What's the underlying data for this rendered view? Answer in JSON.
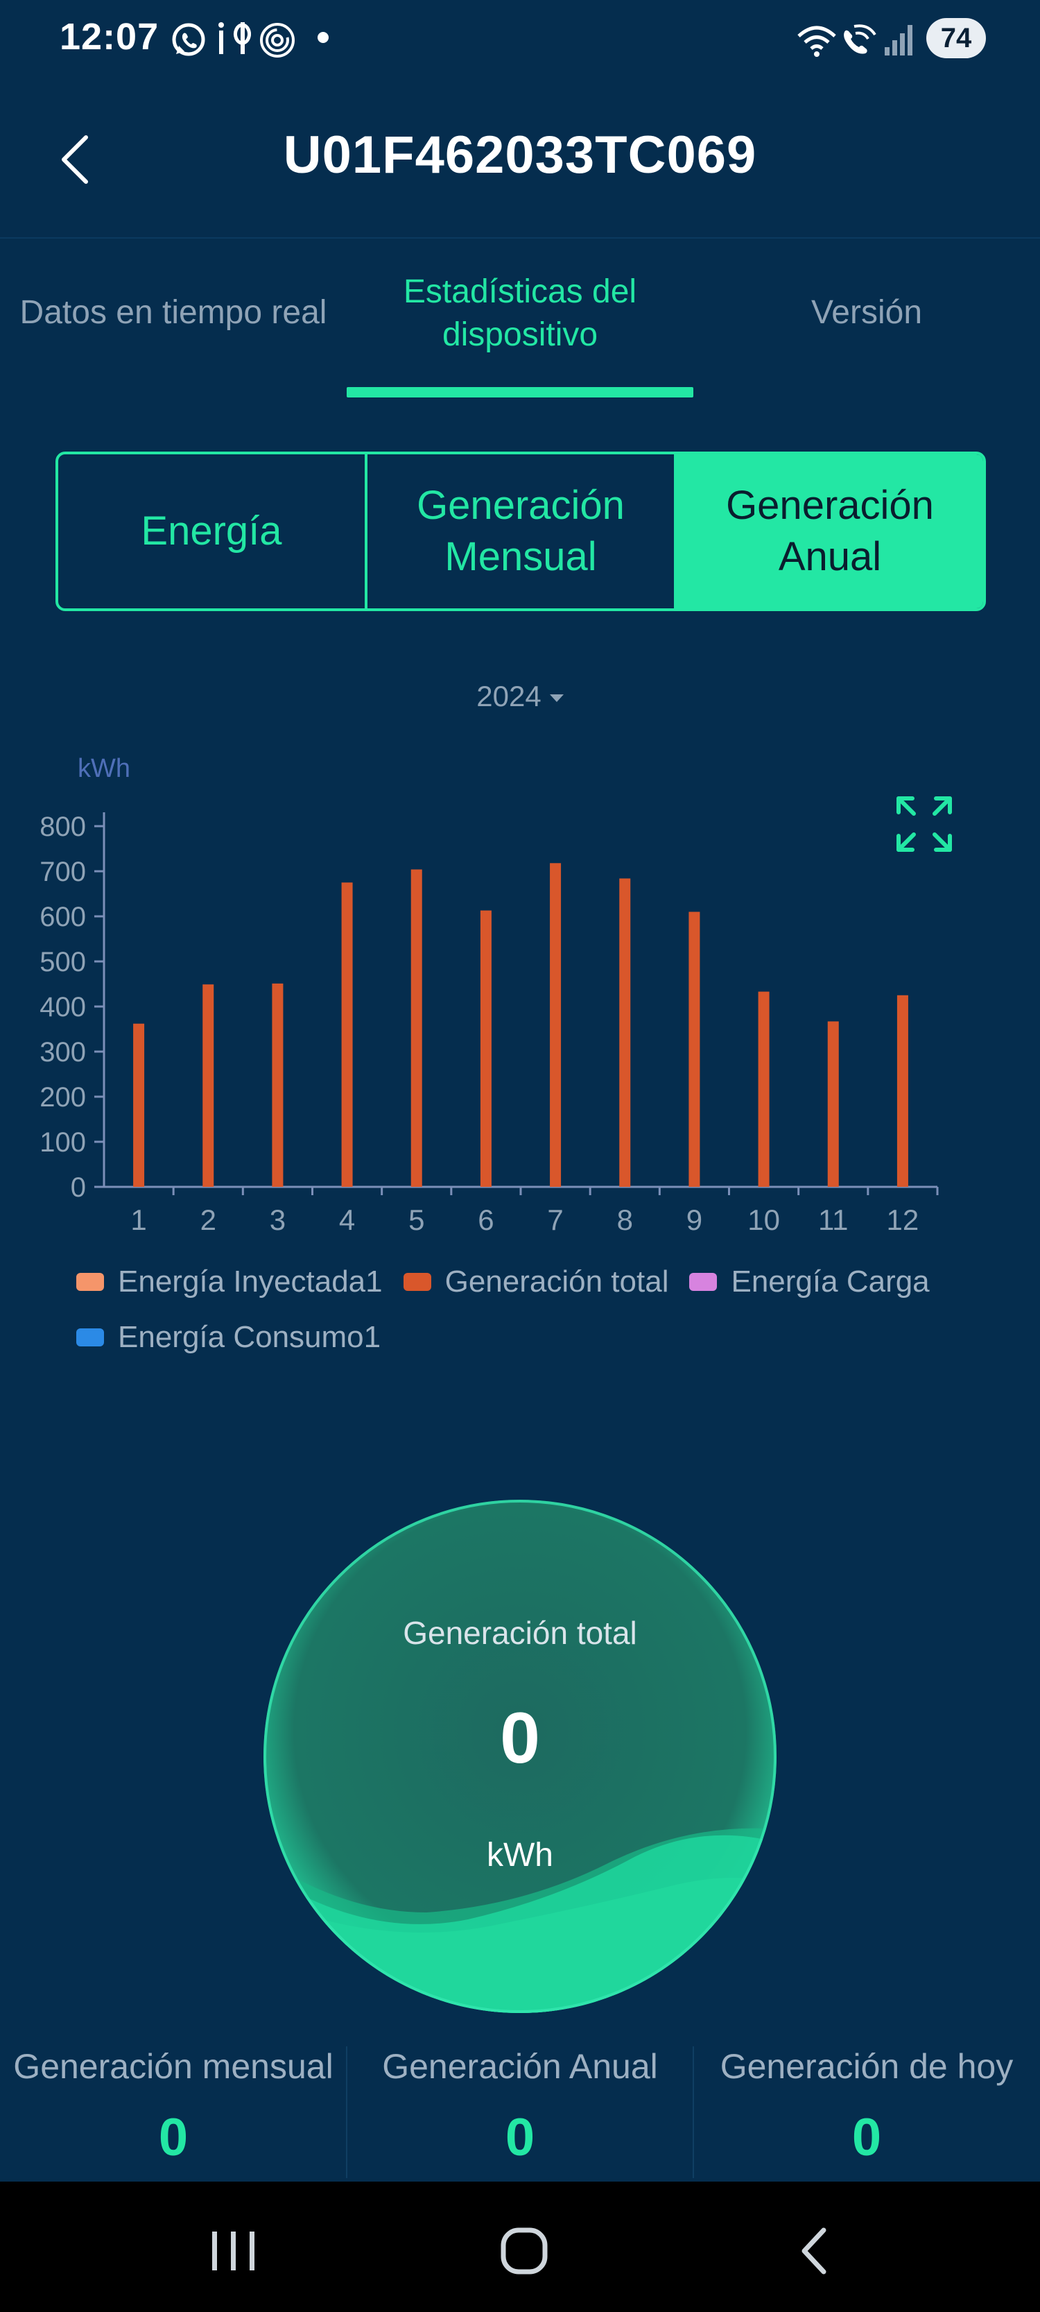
{
  "status_bar": {
    "time": "12:07",
    "left_icons": [
      "whatsapp-icon",
      "id-icon",
      "fingerprint-icon",
      "dot-icon"
    ],
    "right_icons": [
      "wifi-icon",
      "wifi-calling-icon",
      "signal-icon"
    ],
    "battery": "74"
  },
  "header": {
    "title": "U01F462033TC069",
    "back_icon": "chevron-left-icon"
  },
  "tabs": [
    {
      "label": "Datos en tiempo real",
      "active": false
    },
    {
      "label": "Estadísticas del dispositivo",
      "active": true
    },
    {
      "label": "Versión",
      "active": false
    }
  ],
  "segments": [
    {
      "label": "Energía",
      "active": false
    },
    {
      "label": "Generación Mensual",
      "active": false
    },
    {
      "label": "Generación Anual",
      "active": true
    }
  ],
  "year_selector": {
    "value": "2024",
    "icon": "caret-down-icon"
  },
  "expand_icon": "expand-icon",
  "chart_data": {
    "type": "bar",
    "ylabel": "kWh",
    "ylim": [
      0,
      800
    ],
    "yticks": [
      0,
      100,
      200,
      300,
      400,
      500,
      600,
      700,
      800
    ],
    "categories": [
      "1",
      "2",
      "3",
      "4",
      "5",
      "6",
      "7",
      "8",
      "9",
      "10",
      "11",
      "12"
    ],
    "series": [
      {
        "name": "Energía Inyectada1",
        "color": "#f5956a",
        "values": [
          0,
          0,
          0,
          0,
          0,
          0,
          0,
          0,
          0,
          0,
          0,
          0
        ]
      },
      {
        "name": "Generación total",
        "color": "#d9572b",
        "values": [
          362,
          449,
          451,
          675,
          704,
          613,
          718,
          684,
          610,
          433,
          367,
          425
        ]
      },
      {
        "name": "Energía Carga",
        "color": "#d783df",
        "values": [
          0,
          0,
          0,
          0,
          0,
          0,
          0,
          0,
          0,
          0,
          0,
          0
        ]
      },
      {
        "name": "Energía Consumo1",
        "color": "#2b8ae6",
        "values": [
          0,
          0,
          0,
          0,
          0,
          0,
          0,
          0,
          0,
          0,
          0,
          0
        ]
      }
    ],
    "grid": false,
    "legend_position": "bottom"
  },
  "gauge": {
    "label": "Generación total",
    "value": "0",
    "unit": "kWh"
  },
  "stats": [
    {
      "label": "Generación mensual",
      "value": "0"
    },
    {
      "label": "Generación Anual",
      "value": "0"
    },
    {
      "label": "Generación de hoy",
      "value": "0"
    }
  ],
  "navbar": {
    "icons": [
      "recent-apps-icon",
      "home-icon",
      "back-icon"
    ]
  },
  "colors": {
    "background": "#052d4e",
    "accent": "#23e7a4",
    "bar": "#d9572b",
    "muted_text": "#8fa3b6"
  }
}
